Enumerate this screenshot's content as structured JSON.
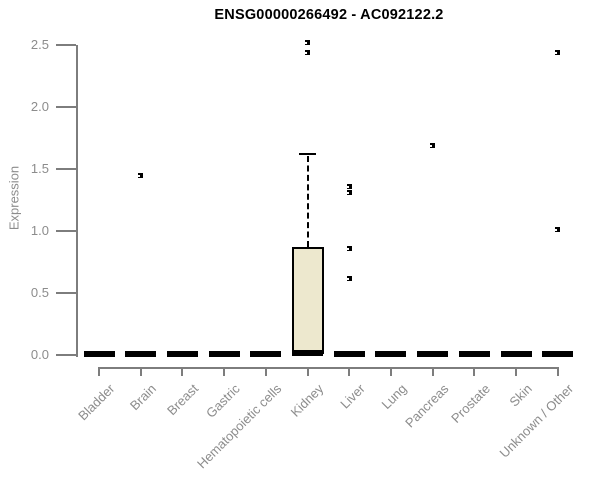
{
  "chart_data": {
    "type": "box",
    "title": "ENSG00000266492 - AC092122.2",
    "ylabel": "Expression",
    "xlabel": "",
    "ylim": [
      0,
      2.5
    ],
    "yticks": [
      0.0,
      0.5,
      1.0,
      1.5,
      2.0,
      2.5
    ],
    "grid": false,
    "legend": false,
    "categories": [
      "Bladder",
      "Brain",
      "Breast",
      "Gastric",
      "Hematopoietic cells",
      "Kidney",
      "Liver",
      "Lung",
      "Pancreas",
      "Prostate",
      "Skin",
      "Unknown / Other"
    ],
    "boxes": [
      {
        "category": "Bladder",
        "whisker_low": 0,
        "q1": 0,
        "median": 0.01,
        "q3": 0.02,
        "whisker_high": 0.02,
        "outliers": []
      },
      {
        "category": "Brain",
        "whisker_low": 0,
        "q1": 0,
        "median": 0.01,
        "q3": 0.02,
        "whisker_high": 0.02,
        "outliers": [
          1.45
        ]
      },
      {
        "category": "Breast",
        "whisker_low": 0,
        "q1": 0,
        "median": 0.01,
        "q3": 0.02,
        "whisker_high": 0.02,
        "outliers": []
      },
      {
        "category": "Gastric",
        "whisker_low": 0,
        "q1": 0,
        "median": 0.01,
        "q3": 0.02,
        "whisker_high": 0.02,
        "outliers": []
      },
      {
        "category": "Hematopoietic cells",
        "whisker_low": 0,
        "q1": 0,
        "median": 0.01,
        "q3": 0.02,
        "whisker_high": 0.02,
        "outliers": []
      },
      {
        "category": "Kidney",
        "whisker_low": 0,
        "q1": 0.01,
        "median": 0.02,
        "q3": 0.87,
        "whisker_high": 1.62,
        "outliers": [
          2.52,
          2.44
        ]
      },
      {
        "category": "Liver",
        "whisker_low": 0,
        "q1": 0,
        "median": 0.01,
        "q3": 0.02,
        "whisker_high": 0.02,
        "outliers": [
          1.36,
          1.31,
          0.86,
          0.62
        ]
      },
      {
        "category": "Lung",
        "whisker_low": 0,
        "q1": 0,
        "median": 0.01,
        "q3": 0.02,
        "whisker_high": 0.02,
        "outliers": []
      },
      {
        "category": "Pancreas",
        "whisker_low": 0,
        "q1": 0,
        "median": 0.01,
        "q3": 0.02,
        "whisker_high": 0.02,
        "outliers": [
          1.69
        ]
      },
      {
        "category": "Prostate",
        "whisker_low": 0,
        "q1": 0,
        "median": 0.01,
        "q3": 0.02,
        "whisker_high": 0.02,
        "outliers": []
      },
      {
        "category": "Skin",
        "whisker_low": 0,
        "q1": 0,
        "median": 0.01,
        "q3": 0.02,
        "whisker_high": 0.02,
        "outliers": []
      },
      {
        "category": "Unknown / Other",
        "whisker_low": 0,
        "q1": 0,
        "median": 0.01,
        "q3": 0.02,
        "whisker_high": 0.02,
        "outliers": [
          2.44,
          1.01
        ]
      }
    ],
    "colors": {
      "box_fill": "#ede8ce",
      "box_border": "#000000",
      "outlier": "#000000",
      "axis_line": "#7d7d7d",
      "tick_text": "#8c8c8c",
      "title_text": "#000000",
      "background": "#ffffff"
    }
  }
}
